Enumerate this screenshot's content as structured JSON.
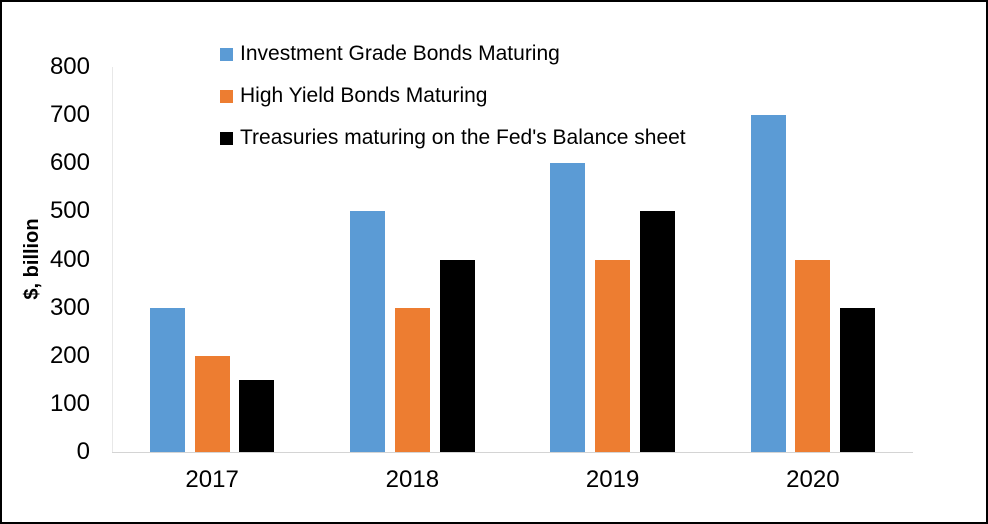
{
  "chart_data": {
    "type": "bar",
    "title": "",
    "categories": [
      "2017",
      "2018",
      "2019",
      "2020"
    ],
    "series": [
      {
        "name": "Investment Grade Bonds Maturing",
        "color": "#5B9BD5",
        "values": [
          300,
          500,
          600,
          700
        ]
      },
      {
        "name": "High Yield Bonds Maturing",
        "color": "#ED7D31",
        "values": [
          200,
          300,
          400,
          400
        ]
      },
      {
        "name": "Treasuries maturing on the Fed's Balance sheet",
        "color": "#000000",
        "values": [
          150,
          400,
          500,
          300
        ]
      }
    ],
    "xlabel": "",
    "ylabel": "$, billion",
    "ylim": [
      0,
      800
    ],
    "ytick_step": 100,
    "yticks": [
      0,
      100,
      200,
      300,
      400,
      500,
      600,
      700,
      800
    ],
    "grid": false,
    "legend_position": "top-left",
    "axis_line_color": "#D4D4D4",
    "text_color": "#000000",
    "frame_border_color": "#000000"
  }
}
